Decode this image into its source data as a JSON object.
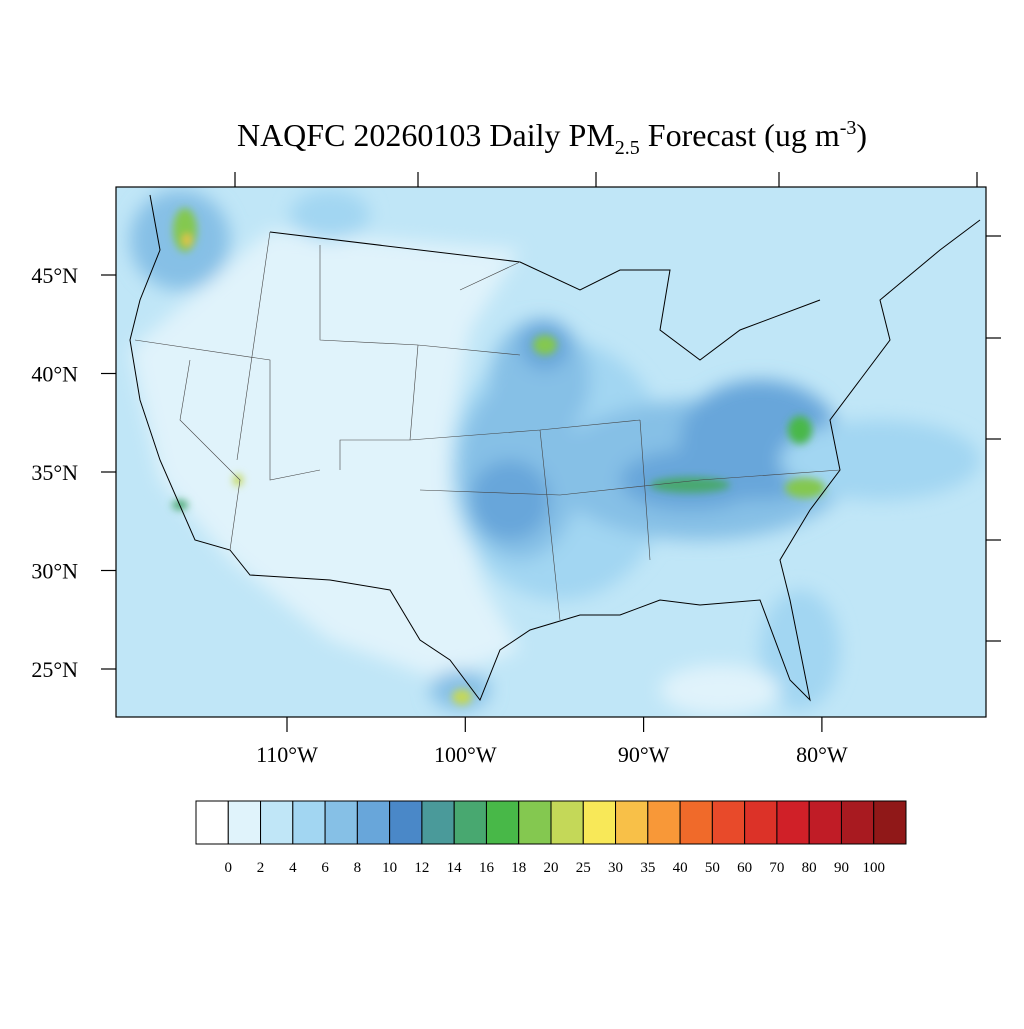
{
  "map": {
    "title": {
      "main": "NAQFC 20260103 Daily PM",
      "sub": "2.5",
      "mid": " Forecast (ug m",
      "sup": "-3",
      "end": ")"
    },
    "lat_ticks": [
      {
        "value": 45,
        "label": "45°N"
      },
      {
        "value": 40,
        "label": "40°N"
      },
      {
        "value": 35,
        "label": "35°N"
      },
      {
        "value": 30,
        "label": "30°N"
      },
      {
        "value": 25,
        "label": "25°N"
      }
    ],
    "lon_ticks": [
      {
        "value": -110,
        "label": "110°W"
      },
      {
        "value": -100,
        "label": "100°W"
      },
      {
        "value": -90,
        "label": "90°W"
      },
      {
        "value": -80,
        "label": "80°W"
      }
    ],
    "legend": {
      "levels": [
        0,
        2,
        4,
        6,
        8,
        10,
        12,
        14,
        16,
        18,
        20,
        25,
        30,
        35,
        40,
        50,
        60,
        70,
        80,
        90,
        100
      ],
      "colors": [
        "#ffffff",
        "#e0f3fb",
        "#c0e6f7",
        "#a2d6f2",
        "#86c0e6",
        "#68a6da",
        "#4a88c8",
        "#4a9a9a",
        "#48a870",
        "#48b848",
        "#84c850",
        "#c4d858",
        "#f8e858",
        "#f8c048",
        "#f89838",
        "#f06a2a",
        "#e84a2a",
        "#dc3228",
        "#d02028",
        "#c01c26",
        "#a81a20",
        "#901818"
      ]
    }
  }
}
